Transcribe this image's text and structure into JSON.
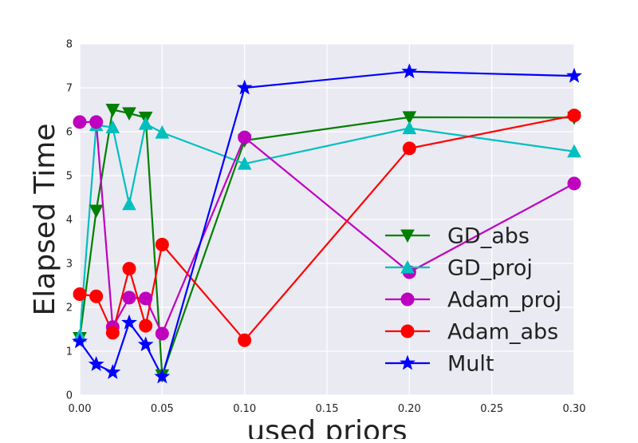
{
  "chart_data": {
    "type": "line",
    "title": "",
    "xlabel": "used priors",
    "ylabel": "Elapsed Time",
    "xlim": [
      0.0,
      0.3
    ],
    "ylim": [
      0,
      8
    ],
    "xticks": [
      "0.00",
      "0.05",
      "0.10",
      "0.15",
      "0.20",
      "0.25",
      "0.30"
    ],
    "xtick_values": [
      0.0,
      0.05,
      0.1,
      0.15,
      0.2,
      0.25,
      0.3
    ],
    "yticks": [
      "0",
      "1",
      "2",
      "3",
      "4",
      "5",
      "6",
      "7",
      "8"
    ],
    "ytick_values": [
      0,
      1,
      2,
      3,
      4,
      5,
      6,
      7,
      8
    ],
    "grid": true,
    "background": "#eaeaf2",
    "legend_position": "lower-right",
    "x": [
      0.0,
      0.01,
      0.02,
      0.03,
      0.04,
      0.05,
      0.1,
      0.2,
      0.3
    ],
    "series": [
      {
        "name": "GD_abs",
        "color": "#008000",
        "marker": "triangle-down",
        "values": [
          1.3,
          4.2,
          6.5,
          6.42,
          6.32,
          0.45,
          5.8,
          6.33,
          6.32
        ]
      },
      {
        "name": "GD_proj",
        "color": "#00bfbf",
        "marker": "triangle-up",
        "values": [
          1.35,
          6.15,
          6.1,
          4.35,
          6.18,
          5.98,
          5.27,
          6.08,
          5.55
        ]
      },
      {
        "name": "Adam_proj",
        "color": "#bf00bf",
        "marker": "circle",
        "values": [
          6.22,
          6.22,
          1.55,
          2.22,
          2.2,
          1.4,
          5.87,
          2.8,
          4.82
        ]
      },
      {
        "name": "Adam_abs",
        "color": "#ff0000",
        "marker": "circle",
        "values": [
          2.3,
          2.25,
          1.42,
          2.88,
          1.58,
          3.43,
          1.25,
          5.62,
          6.37
        ]
      },
      {
        "name": "Mult",
        "color": "#0000ff",
        "marker": "star",
        "values": [
          1.22,
          0.7,
          0.52,
          1.65,
          1.15,
          0.42,
          7.0,
          7.37,
          7.27
        ]
      }
    ]
  }
}
